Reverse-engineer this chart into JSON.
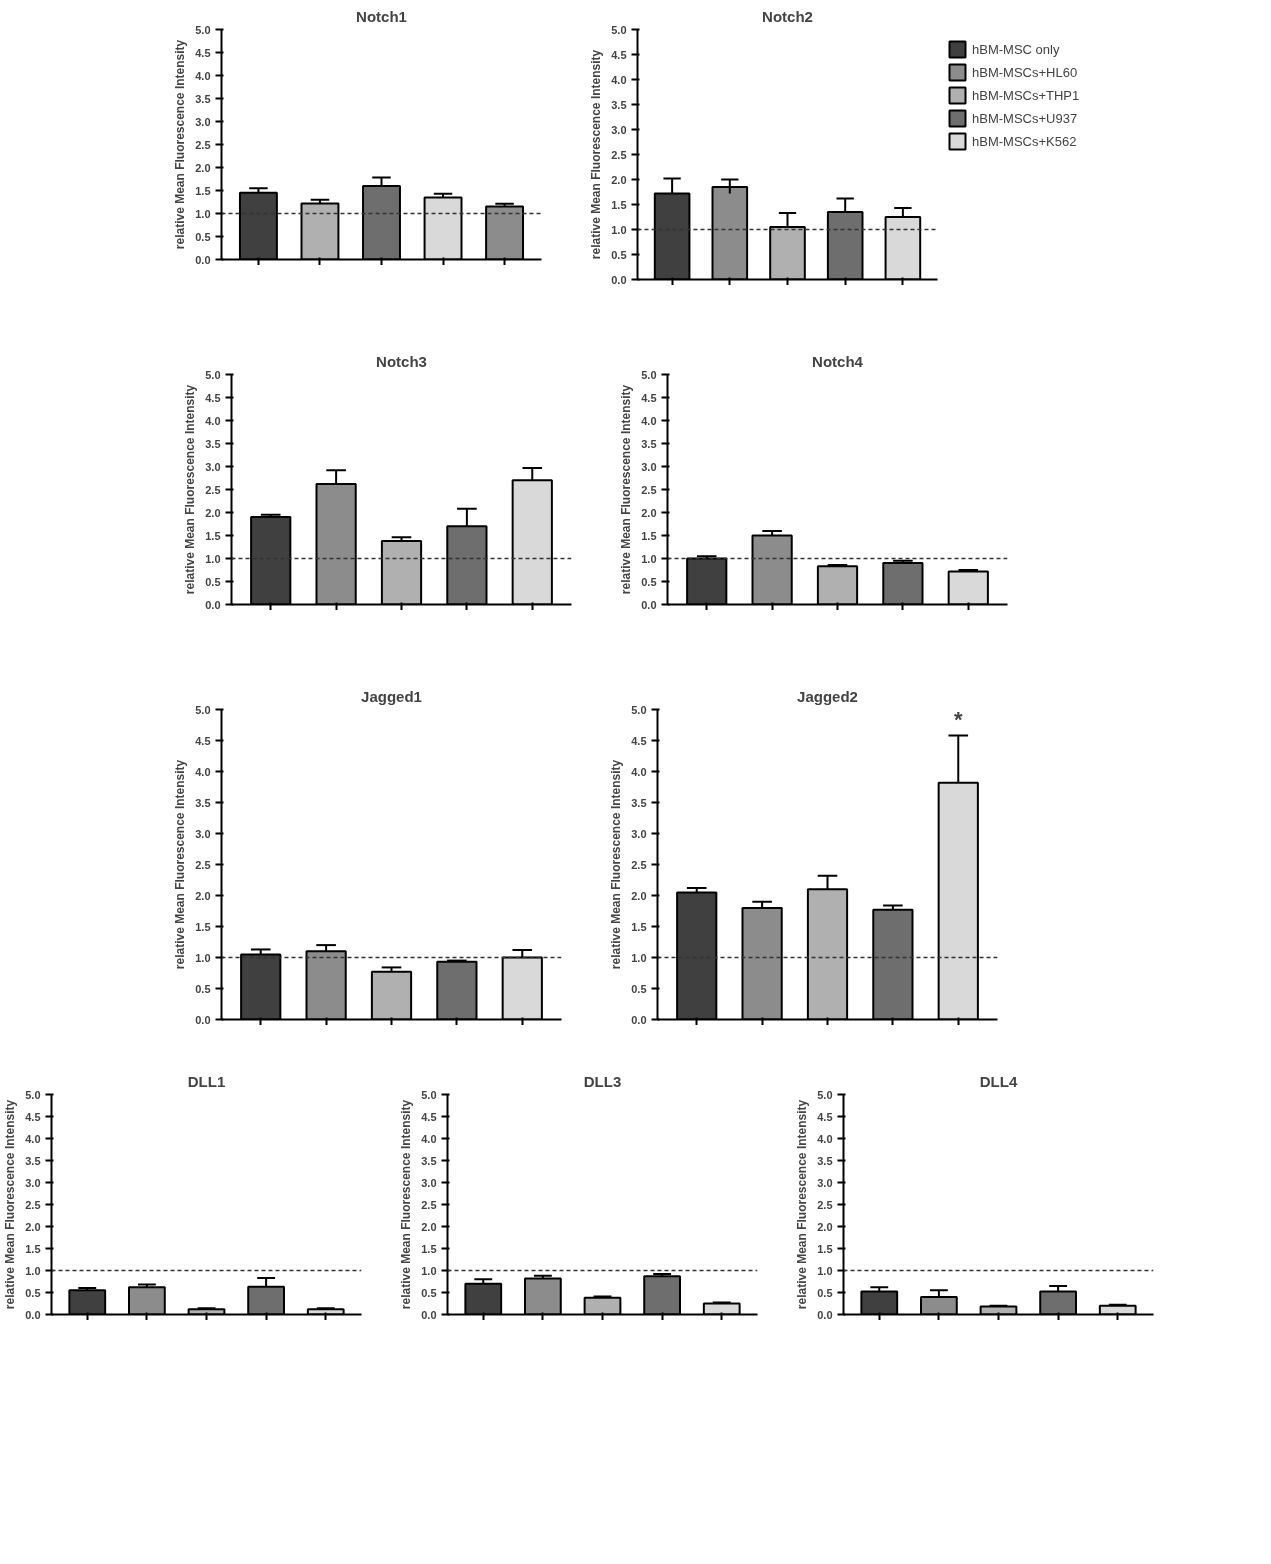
{
  "chart_data": [
    {
      "type": "bar",
      "title": "Notch1",
      "ylabel": "relative Mean Fluorescence Intensity",
      "categories": [
        null,
        null,
        null,
        null,
        null
      ],
      "values": [
        1.45,
        1.22,
        1.6,
        1.35,
        1.15
      ],
      "errors": [
        [
          1.45,
          1.55
        ],
        [
          1.22,
          1.3
        ],
        [
          1.6,
          1.78
        ],
        [
          1.35,
          1.43
        ],
        [
          1.15,
          1.21
        ]
      ],
      "colors": [
        "#404040",
        "#b0b0b0",
        "#6e6e6e",
        "#d9d9d9",
        "#8c8c8c"
      ],
      "ylim": [
        0,
        5
      ],
      "yticks": [
        {
          "value": 0,
          "label": "0.0"
        },
        {
          "value": 0.5,
          "label": "0.5"
        },
        {
          "value": 1,
          "label": "1.0"
        },
        {
          "value": 1.5,
          "label": "1.5"
        },
        {
          "value": 2,
          "label": "2.0"
        },
        {
          "value": 2.5,
          "label": "2.5"
        },
        {
          "value": 3,
          "label": "3.0"
        },
        {
          "value": 3.5,
          "label": "3.5"
        },
        {
          "value": 4,
          "label": "4.0"
        },
        {
          "value": 4.5,
          "label": "4.5"
        },
        {
          "value": 5,
          "label": "5.0"
        }
      ],
      "ref_lines": [
        {
          "axis": "y",
          "value": 1,
          "line_style": "dashed"
        }
      ],
      "tick_labels": "y",
      "grid": false
    },
    {
      "type": "bar",
      "title": "Notch2",
      "ylabel": "relative Mean Fluorescence Intensity",
      "categories": [
        null,
        null,
        null,
        null,
        null
      ],
      "series": [
        {
          "name": "hBM-MSC only",
          "color": "#404040",
          "values": [
            1.72,
            null,
            null,
            null,
            null
          ],
          "errors": [
            [
              1.72,
              2.02
            ],
            null,
            null,
            null,
            null
          ]
        },
        {
          "name": "hBM-MSCs+HL60",
          "color": "#8c8c8c",
          "values": [
            null,
            1.85,
            null,
            null,
            null
          ],
          "errors": [
            null,
            [
              1.72,
              2.0
            ],
            null,
            null,
            null
          ]
        },
        {
          "name": "hBM-MSCs+THP1",
          "color": "#b0b0b0",
          "values": [
            null,
            null,
            1.05,
            null,
            null
          ],
          "errors": [
            null,
            null,
            [
              1.05,
              1.33
            ],
            null,
            null
          ]
        },
        {
          "name": "hBM-MSCs+U937",
          "color": "#6e6e6e",
          "values": [
            null,
            null,
            null,
            1.35,
            null
          ],
          "errors": [
            null,
            null,
            null,
            [
              1.35,
              1.62
            ],
            null
          ]
        },
        {
          "name": "hBM-MSCs+K562",
          "color": "#d9d9d9",
          "values": [
            null,
            null,
            null,
            null,
            1.25
          ],
          "errors": [
            null,
            null,
            null,
            null,
            [
              1.25,
              1.43
            ]
          ]
        }
      ],
      "legend": "right",
      "ylim": [
        0,
        5
      ],
      "yticks": [
        {
          "value": 0,
          "label": "0.0"
        },
        {
          "value": 0.5,
          "label": "0.5"
        },
        {
          "value": 1,
          "label": "1.0"
        },
        {
          "value": 1.5,
          "label": "1.5"
        },
        {
          "value": 2,
          "label": "2.0"
        },
        {
          "value": 2.5,
          "label": "2.5"
        },
        {
          "value": 3,
          "label": "3.0"
        },
        {
          "value": 3.5,
          "label": "3.5"
        },
        {
          "value": 4,
          "label": "4.0"
        },
        {
          "value": 4.5,
          "label": "4.5"
        },
        {
          "value": 5,
          "label": "5.0"
        }
      ],
      "ref_lines": [
        {
          "axis": "y",
          "value": 1,
          "line_style": "dashed"
        }
      ],
      "tick_labels": "y",
      "grid": false
    },
    {
      "type": "bar",
      "title": "Notch3",
      "ylabel": "relative Mean Fluorescence Intensity",
      "categories": [
        null,
        null,
        null,
        null,
        null
      ],
      "values": [
        1.9,
        2.62,
        1.38,
        1.7,
        2.7
      ],
      "errors": [
        [
          1.9,
          1.95
        ],
        [
          2.62,
          2.92
        ],
        [
          1.38,
          1.46
        ],
        [
          1.7,
          2.08
        ],
        [
          2.7,
          2.97
        ]
      ],
      "colors": [
        "#404040",
        "#8c8c8c",
        "#b0b0b0",
        "#6e6e6e",
        "#d9d9d9"
      ],
      "ylim": [
        0,
        5
      ],
      "yticks": [
        {
          "value": 0,
          "label": "0.0"
        },
        {
          "value": 0.5,
          "label": "0.5"
        },
        {
          "value": 1,
          "label": "1.0"
        },
        {
          "value": 1.5,
          "label": "1.5"
        },
        {
          "value": 2,
          "label": "2.0"
        },
        {
          "value": 2.5,
          "label": "2.5"
        },
        {
          "value": 3,
          "label": "3.0"
        },
        {
          "value": 3.5,
          "label": "3.5"
        },
        {
          "value": 4,
          "label": "4.0"
        },
        {
          "value": 4.5,
          "label": "4.5"
        },
        {
          "value": 5,
          "label": "5.0"
        }
      ],
      "ref_lines": [
        {
          "axis": "y",
          "value": 1,
          "line_style": "dashed"
        }
      ],
      "tick_labels": "y",
      "grid": false
    },
    {
      "type": "bar",
      "title": "Notch4",
      "ylabel": "relative Mean Fluorescence Intensity",
      "categories": [
        null,
        null,
        null,
        null,
        null
      ],
      "values": [
        1.0,
        1.5,
        0.83,
        0.9,
        0.72
      ],
      "errors": [
        [
          1.0,
          1.05
        ],
        [
          1.5,
          1.6
        ],
        [
          0.83,
          0.86
        ],
        [
          0.9,
          0.95
        ],
        [
          0.72,
          0.75
        ]
      ],
      "colors": [
        "#404040",
        "#8c8c8c",
        "#b0b0b0",
        "#6e6e6e",
        "#d9d9d9"
      ],
      "ylim": [
        0,
        5
      ],
      "yticks": [
        {
          "value": 0,
          "label": "0.0"
        },
        {
          "value": 0.5,
          "label": "0.5"
        },
        {
          "value": 1,
          "label": "1.0"
        },
        {
          "value": 1.5,
          "label": "1.5"
        },
        {
          "value": 2,
          "label": "2.0"
        },
        {
          "value": 2.5,
          "label": "2.5"
        },
        {
          "value": 3,
          "label": "3.0"
        },
        {
          "value": 3.5,
          "label": "3.5"
        },
        {
          "value": 4,
          "label": "4.0"
        },
        {
          "value": 4.5,
          "label": "4.5"
        },
        {
          "value": 5,
          "label": "5.0"
        }
      ],
      "ref_lines": [
        {
          "axis": "y",
          "value": 1,
          "line_style": "dashed"
        }
      ],
      "tick_labels": "y",
      "grid": false
    },
    {
      "type": "bar",
      "title": "Jagged1",
      "ylabel": "relative Mean Fluorescence Intensity",
      "categories": [
        null,
        null,
        null,
        null,
        null
      ],
      "values": [
        1.05,
        1.1,
        0.77,
        0.93,
        1.0
      ],
      "errors": [
        [
          1.05,
          1.13
        ],
        [
          1.1,
          1.2
        ],
        [
          0.77,
          0.84
        ],
        [
          0.93,
          0.95
        ],
        [
          1.0,
          1.12
        ]
      ],
      "colors": [
        "#404040",
        "#8c8c8c",
        "#b0b0b0",
        "#6e6e6e",
        "#d9d9d9"
      ],
      "ylim": [
        0,
        5
      ],
      "yticks": [
        {
          "value": 0,
          "label": "0.0"
        },
        {
          "value": 0.5,
          "label": "0.5"
        },
        {
          "value": 1,
          "label": "1.0"
        },
        {
          "value": 1.5,
          "label": "1.5"
        },
        {
          "value": 2,
          "label": "2.0"
        },
        {
          "value": 2.5,
          "label": "2.5"
        },
        {
          "value": 3,
          "label": "3.0"
        },
        {
          "value": 3.5,
          "label": "3.5"
        },
        {
          "value": 4,
          "label": "4.0"
        },
        {
          "value": 4.5,
          "label": "4.5"
        },
        {
          "value": 5,
          "label": "5.0"
        }
      ],
      "ref_lines": [
        {
          "axis": "y",
          "value": 1,
          "line_style": "dashed"
        }
      ],
      "tick_labels": "y",
      "grid": false
    },
    {
      "type": "bar",
      "title": "Jagged2",
      "ylabel": "relative Mean Fluorescence Intensity",
      "categories": [
        null,
        null,
        null,
        null,
        null
      ],
      "values": [
        2.05,
        1.8,
        2.1,
        1.77,
        3.82
      ],
      "errors": [
        [
          2.05,
          2.12
        ],
        [
          1.8,
          1.9
        ],
        [
          2.1,
          2.32
        ],
        [
          1.77,
          1.84
        ],
        [
          3.82,
          4.58
        ]
      ],
      "colors": [
        "#404040",
        "#8c8c8c",
        "#b0b0b0",
        "#6e6e6e",
        "#d9d9d9"
      ],
      "annotations": [
        "*"
      ],
      "ylim": [
        0,
        5
      ],
      "yticks": [
        {
          "value": 0,
          "label": "0.0"
        },
        {
          "value": 0.5,
          "label": "0.5"
        },
        {
          "value": 1,
          "label": "1.0"
        },
        {
          "value": 1.5,
          "label": "1.5"
        },
        {
          "value": 2,
          "label": "2.0"
        },
        {
          "value": 2.5,
          "label": "2.5"
        },
        {
          "value": 3,
          "label": "3.0"
        },
        {
          "value": 3.5,
          "label": "3.5"
        },
        {
          "value": 4,
          "label": "4.0"
        },
        {
          "value": 4.5,
          "label": "4.5"
        },
        {
          "value": 5,
          "label": "5.0"
        }
      ],
      "ref_lines": [
        {
          "axis": "y",
          "value": 1,
          "line_style": "dashed"
        }
      ],
      "tick_labels": "y",
      "grid": false
    },
    {
      "type": "bar",
      "title": "DLL1",
      "ylabel": "relative Mean Fluorescence Intensity",
      "categories": [
        null,
        null,
        null,
        null,
        null
      ],
      "values": [
        0.55,
        0.62,
        0.12,
        0.63,
        0.12
      ],
      "errors": [
        [
          0.55,
          0.6
        ],
        [
          0.62,
          0.68
        ],
        [
          0.12,
          0.14
        ],
        [
          0.63,
          0.83
        ],
        [
          0.12,
          0.14
        ]
      ],
      "colors": [
        "#404040",
        "#8c8c8c",
        "#b0b0b0",
        "#6e6e6e",
        "#d9d9d9"
      ],
      "ylim": [
        0,
        5
      ],
      "yticks": [
        {
          "value": 0,
          "label": "0.0"
        },
        {
          "value": 0.5,
          "label": "0.5"
        },
        {
          "value": 1,
          "label": "1.0"
        },
        {
          "value": 1.5,
          "label": "1.5"
        },
        {
          "value": 2,
          "label": "2.0"
        },
        {
          "value": 2.5,
          "label": "2.5"
        },
        {
          "value": 3,
          "label": "3.0"
        },
        {
          "value": 3.5,
          "label": "3.5"
        },
        {
          "value": 4,
          "label": "4.0"
        },
        {
          "value": 4.5,
          "label": "4.5"
        },
        {
          "value": 5,
          "label": "5.0"
        }
      ],
      "ref_lines": [
        {
          "axis": "y",
          "value": 1,
          "line_style": "dashed"
        }
      ],
      "tick_labels": "y",
      "grid": false
    },
    {
      "type": "bar",
      "title": "DLL3",
      "ylabel": "relative Mean Fluorescence Intensity",
      "categories": [
        null,
        null,
        null,
        null,
        null
      ],
      "values": [
        0.7,
        0.82,
        0.38,
        0.87,
        0.25
      ],
      "errors": [
        [
          0.7,
          0.8
        ],
        [
          0.82,
          0.88
        ],
        [
          0.38,
          0.41
        ],
        [
          0.87,
          0.92
        ],
        [
          0.25,
          0.27
        ]
      ],
      "colors": [
        "#404040",
        "#8c8c8c",
        "#b0b0b0",
        "#6e6e6e",
        "#d9d9d9"
      ],
      "ylim": [
        0,
        5
      ],
      "yticks": [
        {
          "value": 0,
          "label": "0.0"
        },
        {
          "value": 0.5,
          "label": "0.5"
        },
        {
          "value": 1,
          "label": "1.0"
        },
        {
          "value": 1.5,
          "label": "1.5"
        },
        {
          "value": 2,
          "label": "2.0"
        },
        {
          "value": 2.5,
          "label": "2.5"
        },
        {
          "value": 3,
          "label": "3.0"
        },
        {
          "value": 3.5,
          "label": "3.5"
        },
        {
          "value": 4,
          "label": "4.0"
        },
        {
          "value": 4.5,
          "label": "4.5"
        },
        {
          "value": 5,
          "label": "5.0"
        }
      ],
      "ref_lines": [
        {
          "axis": "y",
          "value": 1,
          "line_style": "dashed"
        }
      ],
      "tick_labels": "y",
      "grid": false
    },
    {
      "type": "bar",
      "title": "DLL4",
      "ylabel": "relative Mean Fluorescence Intensity",
      "categories": [
        null,
        null,
        null,
        null,
        null
      ],
      "values": [
        0.52,
        0.4,
        0.18,
        0.52,
        0.2
      ],
      "errors": [
        [
          0.52,
          0.62
        ],
        [
          0.4,
          0.55
        ],
        [
          0.18,
          0.2
        ],
        [
          0.52,
          0.65
        ],
        [
          0.2,
          0.22
        ]
      ],
      "colors": [
        "#404040",
        "#8c8c8c",
        "#b0b0b0",
        "#6e6e6e",
        "#d9d9d9"
      ],
      "ylim": [
        0,
        5
      ],
      "yticks": [
        {
          "value": 0,
          "label": "0.0"
        },
        {
          "value": 0.5,
          "label": "0.5"
        },
        {
          "value": 1,
          "label": "1.0"
        },
        {
          "value": 1.5,
          "label": "1.5"
        },
        {
          "value": 2,
          "label": "2.0"
        },
        {
          "value": 2.5,
          "label": "2.5"
        },
        {
          "value": 3,
          "label": "3.0"
        },
        {
          "value": 3.5,
          "label": "3.5"
        },
        {
          "value": 4,
          "label": "4.0"
        },
        {
          "value": 4.5,
          "label": "4.5"
        },
        {
          "value": 5,
          "label": "5.0"
        }
      ],
      "ref_lines": [
        {
          "axis": "y",
          "value": 1,
          "line_style": "dashed"
        }
      ],
      "tick_labels": "y",
      "grid": false
    }
  ]
}
